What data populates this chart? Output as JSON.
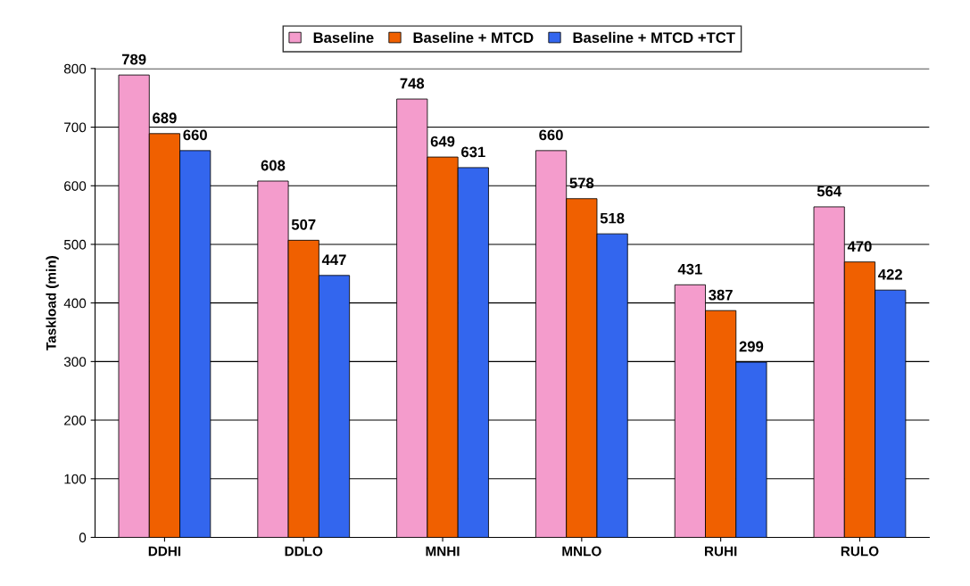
{
  "chart_data": {
    "type": "bar",
    "ylabel": "Taskload (min)",
    "categories": [
      "DDHI",
      "DDLO",
      "MNHI",
      "MNLO",
      "RUHI",
      "RULO"
    ],
    "series": [
      {
        "name": "Baseline",
        "color": "#f49ccc",
        "values": [
          789,
          608,
          748,
          660,
          431,
          564
        ]
      },
      {
        "name": "Baseline + MTCD",
        "color": "#f06000",
        "values": [
          689,
          507,
          649,
          578,
          387,
          470
        ]
      },
      {
        "name": "Baseline + MTCD +TCT",
        "color": "#3366ee",
        "values": [
          660,
          447,
          631,
          518,
          299,
          422
        ]
      }
    ],
    "ylim": [
      0,
      800
    ],
    "yticks": [
      0,
      100,
      200,
      300,
      400,
      500,
      600,
      700,
      800
    ],
    "grid": "y",
    "legend": "top",
    "data_labels": true
  }
}
